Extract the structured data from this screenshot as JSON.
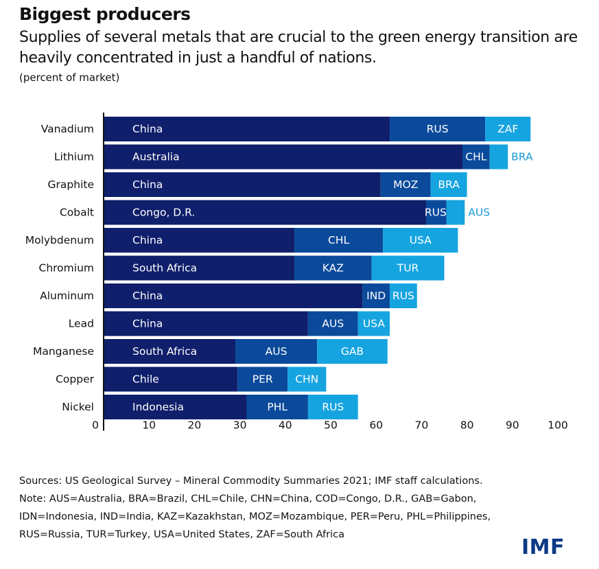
{
  "header": {
    "title": "Biggest producers",
    "subtitle": "Supplies of several metals  that are crucial to the green energy transition are heavily concentrated in just a handful of nations.",
    "unit": "(percent of market)"
  },
  "chart_data": {
    "type": "bar",
    "orientation": "horizontal",
    "stacked": true,
    "xlim": [
      0,
      100
    ],
    "x_ticks": [
      0,
      10,
      20,
      30,
      40,
      50,
      60,
      70,
      80,
      90,
      100
    ],
    "grid": false,
    "colors": [
      "#0f1f6b",
      "#0b4a9b",
      "#16a4e0"
    ],
    "categories": [
      "Vanadium",
      "Lithium",
      "Graphite",
      "Cobalt",
      "Molybdenum",
      "Chromium",
      "Aluminum",
      "Lead",
      "Manganese",
      "Copper",
      "Nickel"
    ],
    "rows": [
      {
        "category": "Vanadium",
        "segments": [
          {
            "label": "China",
            "value": 63
          },
          {
            "label": "RUS",
            "value": 21
          },
          {
            "label": "ZAF",
            "value": 10
          }
        ]
      },
      {
        "category": "Lithium",
        "segments": [
          {
            "label": "Australia",
            "value": 79
          },
          {
            "label": "CHL",
            "value": 6
          },
          {
            "label": "BRA",
            "value": 4
          }
        ]
      },
      {
        "category": "Graphite",
        "segments": [
          {
            "label": "China",
            "value": 61
          },
          {
            "label": "MOZ",
            "value": 11
          },
          {
            "label": "BRA",
            "value": 8
          }
        ]
      },
      {
        "category": "Cobalt",
        "segments": [
          {
            "label": "Congo, D.R.",
            "value": 71
          },
          {
            "label": "RUS",
            "value": 4.5
          },
          {
            "label": "AUS",
            "value": 4
          }
        ]
      },
      {
        "category": "Molybdenum",
        "segments": [
          {
            "label": "China",
            "value": 42
          },
          {
            "label": "CHL",
            "value": 19.5
          },
          {
            "label": "USA",
            "value": 16.5
          }
        ]
      },
      {
        "category": "Chromium",
        "segments": [
          {
            "label": "South Africa",
            "value": 42
          },
          {
            "label": "KAZ",
            "value": 17
          },
          {
            "label": "TUR",
            "value": 16
          }
        ]
      },
      {
        "category": "Aluminum",
        "segments": [
          {
            "label": "China",
            "value": 57
          },
          {
            "label": "IND",
            "value": 6
          },
          {
            "label": "RUS",
            "value": 6
          }
        ]
      },
      {
        "category": "Lead",
        "segments": [
          {
            "label": "China",
            "value": 45
          },
          {
            "label": "AUS",
            "value": 11
          },
          {
            "label": "USA",
            "value": 7
          }
        ]
      },
      {
        "category": "Manganese",
        "segments": [
          {
            "label": "South Africa",
            "value": 29
          },
          {
            "label": "AUS",
            "value": 18
          },
          {
            "label": "GAB",
            "value": 15.5
          }
        ]
      },
      {
        "category": "Copper",
        "segments": [
          {
            "label": "Chile",
            "value": 29.5
          },
          {
            "label": "PER",
            "value": 11
          },
          {
            "label": "CHN",
            "value": 8.5
          }
        ]
      },
      {
        "category": "Nickel",
        "segments": [
          {
            "label": "Indonesia",
            "value": 31.5
          },
          {
            "label": "PHL",
            "value": 13.5
          },
          {
            "label": "RUS",
            "value": 11
          }
        ]
      }
    ]
  },
  "footer": {
    "sources_line": "Sources: US Geological Survey – Mineral Commodity Summaries 2021; IMF staff calculations.",
    "note_line1": "Note: AUS=Australia, BRA=Brazil, CHL=Chile, CHN=China, COD=Congo, D.R., GAB=Gabon,",
    "note_line2": "IDN=Indonesia, IND=India, KAZ=Kazakhstan, MOZ=Mozambique, PER=Peru, PHL=Philippines,",
    "note_line3": "RUS=Russia, TUR=Turkey, USA=United States, ZAF=South Africa",
    "brand": "IMF"
  }
}
